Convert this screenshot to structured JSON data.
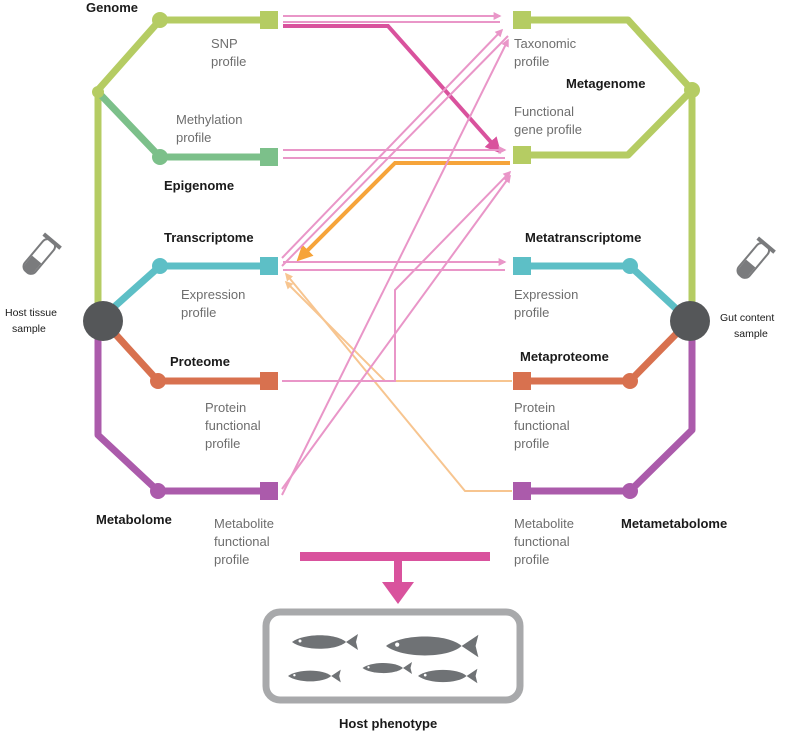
{
  "host": {
    "sample_label_1": "Host tissue",
    "sample_label_2": "sample",
    "genome": "Genome",
    "snp_1": "SNP",
    "snp_2": "profile",
    "methylation_1": "Methylation",
    "methylation_2": "profile",
    "epigenome": "Epigenome",
    "transcriptome": "Transcriptome",
    "expression_1": "Expression",
    "expression_2": "profile",
    "proteome": "Proteome",
    "protein_1": "Protein",
    "protein_2": "functional",
    "protein_3": "profile",
    "metabolome": "Metabolome",
    "metabolite_1": "Metabolite",
    "metabolite_2": "functional",
    "metabolite_3": "profile"
  },
  "gut": {
    "sample_label_1": "Gut content",
    "sample_label_2": "sample",
    "metagenome": "Metagenome",
    "taxonomic_1": "Taxonomic",
    "taxonomic_2": "profile",
    "functional_1": "Functional",
    "functional_2": "gene profile",
    "metatranscriptome": "Metatranscriptome",
    "expression_1": "Expression",
    "expression_2": "profile",
    "metaproteome": "Metaproteome",
    "protein_1": "Protein",
    "protein_2": "functional",
    "protein_3": "profile",
    "metametabolome": "Metametabolome",
    "metabolite_1": "Metabolite",
    "metabolite_2": "functional",
    "metabolite_3": "profile"
  },
  "phenotype": {
    "label": "Host phenotype"
  },
  "colors": {
    "genome": "#b5cc63",
    "epigenome": "#7cc08a",
    "transcriptome": "#5dbfc6",
    "proteome": "#d8714f",
    "metabolome": "#ab5bab",
    "hub": "#555759",
    "link_pink": "#e996c8",
    "link_pink_strong": "#d9529d",
    "link_orange": "#f7c590",
    "link_orange_strong": "#f6a43a",
    "phenotype_bar": "#d9529d",
    "frame": "#a8a9ab"
  }
}
